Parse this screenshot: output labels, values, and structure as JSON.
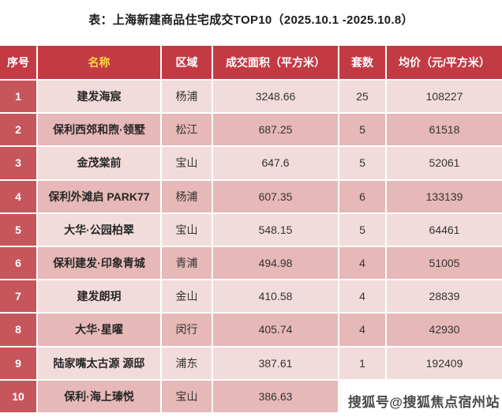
{
  "title": "表：上海新建商品住宅成交TOP10（2025.10.1 -2025.10.8）",
  "watermark": {
    "text": "搜狐号@搜狐焦点宿州站"
  },
  "colors": {
    "header-bg": "#c23b44",
    "header-text": "#ffffff",
    "name-header-text": "#ffd93b",
    "index-bg": "#c6565c",
    "row-light": "#f2dcdb",
    "row-dark": "#e6b8b7",
    "body-text": "#333333"
  },
  "chart_data": {
    "type": "table",
    "title": "表：上海新建商品住宅成交TOP10（2025.10.1 -2025.10.8）",
    "columns": [
      "序号",
      "名称",
      "区域",
      "成交面积（平方米）",
      "套数",
      "均价（元/平方米）"
    ],
    "rows": [
      [
        "1",
        "建发海宸",
        "杨浦",
        "3248.66",
        "25",
        "108227"
      ],
      [
        "2",
        "保利西郊和煦·领墅",
        "松江",
        "687.25",
        "5",
        "61518"
      ],
      [
        "3",
        "金茂棠前",
        "宝山",
        "647.6",
        "5",
        "52061"
      ],
      [
        "4",
        "保利外滩启 PARK77",
        "杨浦",
        "607.35",
        "6",
        "133139"
      ],
      [
        "5",
        "大华·公园柏翠",
        "宝山",
        "548.15",
        "5",
        "64461"
      ],
      [
        "6",
        "保利建发·印象青城",
        "青浦",
        "494.98",
        "4",
        "51005"
      ],
      [
        "7",
        "建发朗玥",
        "金山",
        "410.58",
        "4",
        "28839"
      ],
      [
        "8",
        "大华·星曜",
        "闵行",
        "405.74",
        "4",
        "42930"
      ],
      [
        "9",
        "陆家嘴太古源 源邸",
        "浦东",
        "387.61",
        "1",
        "192409"
      ],
      [
        "10",
        "保利·海上瑧悦",
        "宝山",
        "386.63",
        "",
        ""
      ]
    ]
  }
}
